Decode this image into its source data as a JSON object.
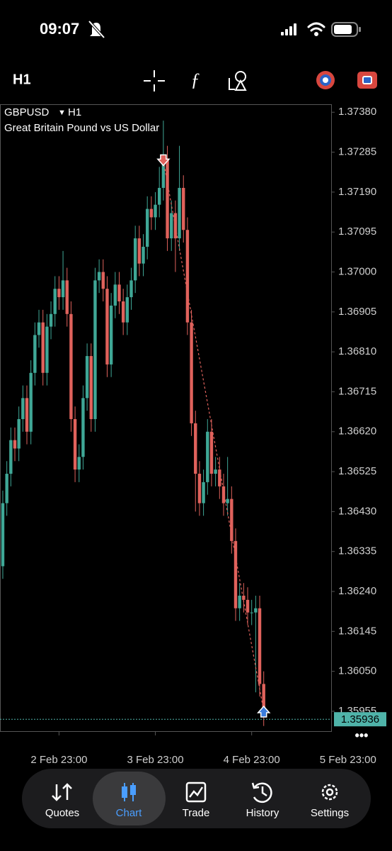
{
  "status_bar": {
    "time": "09:07"
  },
  "toolbar": {
    "timeframe": "H1"
  },
  "chart_data": {
    "type": "candlestick",
    "symbol": "GBPUSD",
    "timeframe": "H1",
    "description": "Great Britain Pound vs US Dollar",
    "up_color": "#3fa796",
    "down_color": "#e0625c",
    "open": [
      1.363,
      1.3645,
      1.3652,
      1.366,
      1.3658,
      1.3665,
      1.367,
      1.3662,
      1.3676,
      1.3685,
      1.3688,
      1.3676,
      1.3687,
      1.369,
      1.3696,
      1.3694,
      1.3698,
      1.369,
      1.3665,
      1.3653,
      1.3656,
      1.367,
      1.368,
      1.3665,
      1.3698,
      1.37,
      1.3696,
      1.3678,
      1.3692,
      1.3697,
      1.3693,
      1.3688,
      1.3694,
      1.3698,
      1.3708,
      1.3702,
      1.3706,
      1.3715,
      1.3713,
      1.3716,
      1.372,
      1.3727,
      1.3708,
      1.3714,
      1.3708,
      1.372,
      1.371,
      1.3688,
      1.3664,
      1.3652,
      1.3645,
      1.365,
      1.3662,
      1.3652,
      1.3653,
      1.3649,
      1.3645,
      1.3646,
      1.3636,
      1.362,
      1.3623,
      1.3622,
      1.3619,
      1.3619,
      1.362,
      1.3602
    ],
    "high": [
      1.3648,
      1.3655,
      1.3663,
      1.3663,
      1.3668,
      1.3673,
      1.3673,
      1.3679,
      1.3688,
      1.3691,
      1.3691,
      1.369,
      1.3693,
      1.3699,
      1.3699,
      1.3705,
      1.3701,
      1.3693,
      1.3668,
      1.3659,
      1.3673,
      1.3683,
      1.3683,
      1.3701,
      1.3703,
      1.3703,
      1.3699,
      1.3695,
      1.37,
      1.37,
      1.3696,
      1.3697,
      1.3701,
      1.3711,
      1.3711,
      1.3709,
      1.3718,
      1.3718,
      1.3719,
      1.3725,
      1.3736,
      1.373,
      1.3717,
      1.3717,
      1.373,
      1.3723,
      1.3713,
      1.3691,
      1.3667,
      1.3655,
      1.3653,
      1.3665,
      1.3665,
      1.3656,
      1.3656,
      1.3652,
      1.3656,
      1.3649,
      1.3639,
      1.3626,
      1.3626,
      1.3625,
      1.3622,
      1.3623,
      1.3623,
      1.3605
    ],
    "low": [
      1.3627,
      1.3642,
      1.3649,
      1.3655,
      1.3655,
      1.3662,
      1.3659,
      1.3659,
      1.3673,
      1.3682,
      1.3673,
      1.3673,
      1.3684,
      1.3687,
      1.3691,
      1.3691,
      1.3687,
      1.3662,
      1.365,
      1.365,
      1.3653,
      1.3667,
      1.3662,
      1.3662,
      1.3695,
      1.3693,
      1.3675,
      1.3675,
      1.3689,
      1.369,
      1.3685,
      1.3685,
      1.3691,
      1.3695,
      1.3699,
      1.3699,
      1.3703,
      1.371,
      1.371,
      1.3713,
      1.3717,
      1.3705,
      1.3705,
      1.37,
      1.3705,
      1.3707,
      1.3685,
      1.3661,
      1.3643,
      1.3642,
      1.3642,
      1.3647,
      1.3649,
      1.3649,
      1.3646,
      1.3642,
      1.3642,
      1.3633,
      1.3617,
      1.3617,
      1.3619,
      1.3616,
      1.3616,
      1.36,
      1.3599,
      1.3592
    ],
    "close": [
      1.3645,
      1.3652,
      1.366,
      1.3658,
      1.3665,
      1.367,
      1.3662,
      1.3676,
      1.3685,
      1.3688,
      1.3676,
      1.3687,
      1.369,
      1.3696,
      1.3694,
      1.3698,
      1.369,
      1.3665,
      1.3653,
      1.3656,
      1.367,
      1.368,
      1.3665,
      1.3698,
      1.37,
      1.3696,
      1.3678,
      1.3692,
      1.3697,
      1.3693,
      1.3688,
      1.3694,
      1.3698,
      1.3708,
      1.3702,
      1.3706,
      1.3715,
      1.3713,
      1.3716,
      1.372,
      1.3727,
      1.3708,
      1.3714,
      1.3708,
      1.372,
      1.371,
      1.3688,
      1.3664,
      1.3652,
      1.3645,
      1.365,
      1.3662,
      1.3652,
      1.3653,
      1.3649,
      1.3645,
      1.3646,
      1.3636,
      1.362,
      1.3623,
      1.3622,
      1.3619,
      1.3619,
      1.362,
      1.3602,
      1.3596
    ],
    "xlim": [
      -0.7,
      81.8
    ],
    "xticks": [
      {
        "value": 14,
        "label": "2 Feb 23:00"
      },
      {
        "value": 38,
        "label": "3 Feb 23:00"
      },
      {
        "value": 62,
        "label": "4 Feb 23:00"
      },
      {
        "value": 86,
        "label": "5 Feb 23:00"
      }
    ],
    "ylim": [
      1.35906,
      1.37399
    ],
    "yticks": [
      {
        "value": 1.3738,
        "label": "1.37380"
      },
      {
        "value": 1.37285,
        "label": "1.37285"
      },
      {
        "value": 1.3719,
        "label": "1.37190"
      },
      {
        "value": 1.37095,
        "label": "1.37095"
      },
      {
        "value": 1.37,
        "label": "1.37000"
      },
      {
        "value": 1.36905,
        "label": "1.36905"
      },
      {
        "value": 1.3681,
        "label": "1.36810"
      },
      {
        "value": 1.36715,
        "label": "1.36715"
      },
      {
        "value": 1.3662,
        "label": "1.36620"
      },
      {
        "value": 1.36525,
        "label": "1.36525"
      },
      {
        "value": 1.3643,
        "label": "1.36430"
      },
      {
        "value": 1.36335,
        "label": "1.36335"
      },
      {
        "value": 1.3624,
        "label": "1.36240"
      },
      {
        "value": 1.36145,
        "label": "1.36145"
      },
      {
        "value": 1.3605,
        "label": "1.36050"
      },
      {
        "value": 1.35955,
        "label": "1.35955"
      }
    ],
    "bid": 1.35936,
    "bid_color": "#4fb3a9",
    "markers": [
      {
        "index": 40,
        "price": 1.37265,
        "color": "#e0625c"
      },
      {
        "index": 65,
        "price": 1.35955,
        "color": "#3b7ddd"
      }
    ]
  },
  "nav": [
    "Quotes",
    "Chart",
    "Trade",
    "History",
    "Settings"
  ]
}
